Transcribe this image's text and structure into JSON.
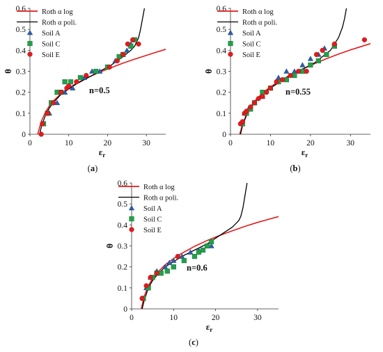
{
  "figure": {
    "legend_labels": {
      "log": "Roth α log",
      "poly": "Roth α poli.",
      "soilA": "Soil A",
      "soilC": "Soil C",
      "soilE": "Soil E"
    },
    "colors": {
      "log": "#e31a1c",
      "poly": "#000000",
      "soilA": "#2e5ea8",
      "soilC": "#22a04b",
      "soilE": "#e31a1c"
    }
  },
  "chart_data": [
    {
      "type": "scatter",
      "panel_label": "(a)",
      "annotation": "n=0.5",
      "xlabel": "εr",
      "ylabel": "θ",
      "xlim": [
        0,
        35
      ],
      "ylim": [
        0,
        0.6
      ],
      "xticks": [
        "0",
        "10",
        "20",
        "30"
      ],
      "yticks": [
        "0",
        "0.1",
        "0.2",
        "0.3",
        "0.4",
        "0.5",
        "0.6"
      ],
      "grid": false,
      "legend_position": "top-left",
      "series": [
        {
          "name": "Roth α log",
          "kind": "line",
          "x": [
            2.0,
            3,
            4,
            5,
            6,
            8,
            10,
            12,
            15,
            18,
            21,
            24,
            27,
            30,
            32,
            35
          ],
          "y": [
            0.0,
            0.065,
            0.105,
            0.135,
            0.158,
            0.193,
            0.22,
            0.243,
            0.271,
            0.296,
            0.318,
            0.339,
            0.358,
            0.376,
            0.388,
            0.405
          ]
        },
        {
          "name": "Roth α poli.",
          "kind": "line",
          "x": [
            2.5,
            3,
            4,
            5,
            6,
            8,
            10,
            12,
            15,
            18,
            21,
            24,
            26,
            27,
            28,
            28.5,
            29,
            29.5
          ],
          "y": [
            0.0,
            0.04,
            0.09,
            0.125,
            0.15,
            0.19,
            0.215,
            0.24,
            0.27,
            0.3,
            0.33,
            0.37,
            0.4,
            0.42,
            0.46,
            0.5,
            0.55,
            0.6
          ]
        },
        {
          "name": "Soil A",
          "kind": "triangle",
          "x": [
            3.5,
            5,
            7,
            9,
            11,
            14,
            16,
            18,
            20,
            22,
            24,
            25,
            26
          ],
          "y": [
            0.05,
            0.1,
            0.15,
            0.2,
            0.22,
            0.27,
            0.3,
            0.3,
            0.32,
            0.35,
            0.38,
            0.4,
            0.43
          ]
        },
        {
          "name": "Soil C",
          "kind": "square",
          "x": [
            3.5,
            4.5,
            5.5,
            7,
            8,
            9,
            10.5,
            13,
            17,
            20,
            23,
            24,
            26,
            27
          ],
          "y": [
            0.05,
            0.1,
            0.15,
            0.2,
            0.2,
            0.25,
            0.25,
            0.27,
            0.3,
            0.32,
            0.37,
            0.38,
            0.42,
            0.45
          ]
        },
        {
          "name": "Soil E",
          "kind": "circle",
          "x": [
            2.9,
            3.2,
            4.5,
            6,
            8,
            9.5,
            10,
            12,
            14.5,
            20.5,
            22.5,
            24,
            25.2,
            26.5,
            28
          ],
          "y": [
            0.0,
            0.05,
            0.1,
            0.15,
            0.2,
            0.22,
            0.23,
            0.25,
            0.28,
            0.32,
            0.35,
            0.38,
            0.43,
            0.45,
            0.43
          ]
        }
      ]
    },
    {
      "type": "scatter",
      "panel_label": "(b)",
      "annotation": "n=0.55",
      "xlabel": "εr",
      "ylabel": "θ",
      "xlim": [
        0,
        35
      ],
      "ylim": [
        0,
        0.6
      ],
      "xticks": [
        "0",
        "10",
        "20",
        "30"
      ],
      "yticks": [
        "0",
        "0.1",
        "0.2",
        "0.3",
        "0.4",
        "0.5",
        "0.6"
      ],
      "grid": false,
      "legend_position": "top-left",
      "series": [
        {
          "name": "Roth α log",
          "kind": "line",
          "x": [
            2.3,
            3,
            4,
            5,
            6,
            8,
            10,
            12,
            15,
            18,
            21,
            24,
            27,
            30,
            35
          ],
          "y": [
            0.0,
            0.045,
            0.095,
            0.13,
            0.157,
            0.196,
            0.226,
            0.25,
            0.283,
            0.311,
            0.336,
            0.36,
            0.382,
            0.402,
            0.432
          ]
        },
        {
          "name": "Roth α poli.",
          "kind": "line",
          "x": [
            2.5,
            3,
            4,
            5,
            6,
            8,
            10,
            12,
            15,
            18,
            21,
            23,
            25,
            26,
            27,
            28,
            28.5,
            29
          ],
          "y": [
            0.0,
            0.04,
            0.09,
            0.125,
            0.15,
            0.19,
            0.22,
            0.245,
            0.28,
            0.31,
            0.34,
            0.37,
            0.4,
            0.43,
            0.46,
            0.51,
            0.55,
            0.6
          ]
        },
        {
          "name": "Soil A",
          "kind": "triangle",
          "x": [
            3,
            3.5,
            4.5,
            6,
            8,
            10,
            12,
            14,
            16,
            18,
            20,
            22,
            23.5
          ],
          "y": [
            0.05,
            0.1,
            0.12,
            0.15,
            0.18,
            0.22,
            0.27,
            0.3,
            0.3,
            0.33,
            0.36,
            0.38,
            0.41
          ]
        },
        {
          "name": "Soil C",
          "kind": "square",
          "x": [
            3,
            4,
            5,
            6,
            8,
            10,
            12,
            14,
            16,
            18,
            20,
            22,
            24,
            26
          ],
          "y": [
            0.05,
            0.1,
            0.12,
            0.15,
            0.2,
            0.22,
            0.25,
            0.26,
            0.28,
            0.3,
            0.33,
            0.35,
            0.38,
            0.42
          ]
        },
        {
          "name": "Soil E",
          "kind": "circle",
          "x": [
            2.5,
            3,
            3.5,
            4,
            5,
            6,
            7,
            8,
            9,
            10,
            11.5,
            13,
            15,
            17,
            19,
            21.5,
            23,
            26,
            33.5
          ],
          "y": [
            0.05,
            0.06,
            0.1,
            0.11,
            0.13,
            0.15,
            0.17,
            0.18,
            0.2,
            0.22,
            0.25,
            0.26,
            0.28,
            0.3,
            0.3,
            0.38,
            0.4,
            0.43,
            0.45
          ]
        }
      ]
    },
    {
      "type": "scatter",
      "panel_label": "(c)",
      "annotation": "n=0.6",
      "xlabel": "εr",
      "ylabel": "θ",
      "xlim": [
        0,
        35
      ],
      "ylim": [
        0,
        0.6
      ],
      "xticks": [
        "0",
        "10",
        "20",
        "30"
      ],
      "yticks": [
        "0",
        "0.1",
        "0.2",
        "0.3",
        "0.4",
        "0.5",
        "0.6"
      ],
      "grid": false,
      "legend_position": "top-left",
      "series": [
        {
          "name": "Roth α log",
          "kind": "line",
          "x": [
            2.3,
            3,
            4,
            5,
            6,
            8,
            10,
            12,
            15,
            18,
            21,
            24,
            27,
            30,
            35
          ],
          "y": [
            0.0,
            0.06,
            0.11,
            0.145,
            0.17,
            0.21,
            0.24,
            0.265,
            0.298,
            0.326,
            0.35,
            0.372,
            0.393,
            0.412,
            0.44
          ]
        },
        {
          "name": "Roth α poli.",
          "kind": "line",
          "x": [
            2.5,
            3,
            4,
            5,
            6,
            8,
            10,
            12,
            15,
            18,
            21,
            24,
            25.5,
            26,
            26.5,
            27,
            27.5
          ],
          "y": [
            0.0,
            0.04,
            0.1,
            0.135,
            0.16,
            0.2,
            0.225,
            0.25,
            0.28,
            0.31,
            0.35,
            0.39,
            0.42,
            0.44,
            0.48,
            0.54,
            0.6
          ]
        },
        {
          "name": "Soil A",
          "kind": "triangle",
          "x": [
            2.8,
            3.5,
            4.5,
            6,
            8,
            9,
            10,
            12,
            14,
            16,
            18,
            19
          ],
          "y": [
            0.05,
            0.1,
            0.15,
            0.18,
            0.2,
            0.22,
            0.23,
            0.25,
            0.27,
            0.28,
            0.3,
            0.3
          ]
        },
        {
          "name": "Soil C",
          "kind": "square",
          "x": [
            2.8,
            4,
            5,
            6,
            7,
            8.5,
            10,
            12.5,
            15,
            16,
            17,
            18,
            19
          ],
          "y": [
            0.05,
            0.1,
            0.15,
            0.17,
            0.17,
            0.18,
            0.2,
            0.23,
            0.25,
            0.27,
            0.28,
            0.3,
            0.32
          ]
        },
        {
          "name": "Soil E",
          "kind": "circle",
          "x": [
            2.5,
            3.5,
            4.5,
            6,
            11
          ],
          "y": [
            0.05,
            0.11,
            0.15,
            0.17,
            0.25
          ]
        }
      ]
    }
  ]
}
